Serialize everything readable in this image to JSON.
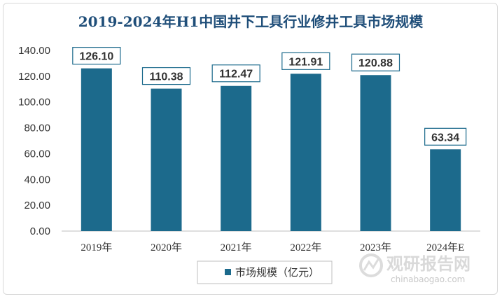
{
  "chart_data": {
    "type": "bar",
    "title": "2019-2024年H1中国井下工具行业修井工具市场规模",
    "categories": [
      "2019年",
      "2020年",
      "2021年",
      "2022年",
      "2023年",
      "2024年E"
    ],
    "series": [
      {
        "name": "市场规模（亿元）",
        "values": [
          126.1,
          110.38,
          112.47,
          121.91,
          120.88,
          63.34
        ]
      }
    ],
    "data_labels": [
      "126.10",
      "110.38",
      "112.47",
      "121.91",
      "120.88",
      "63.34"
    ],
    "yticks": [
      "0.00",
      "20.00",
      "40.00",
      "60.00",
      "80.00",
      "100.00",
      "120.00",
      "140.00"
    ],
    "ylim": [
      0,
      140
    ],
    "grid": false,
    "legend_position": "bottom",
    "bar_color": "#1c6a8c"
  },
  "watermark": {
    "text": "观研报告网",
    "url": "chinabaogao.com"
  }
}
